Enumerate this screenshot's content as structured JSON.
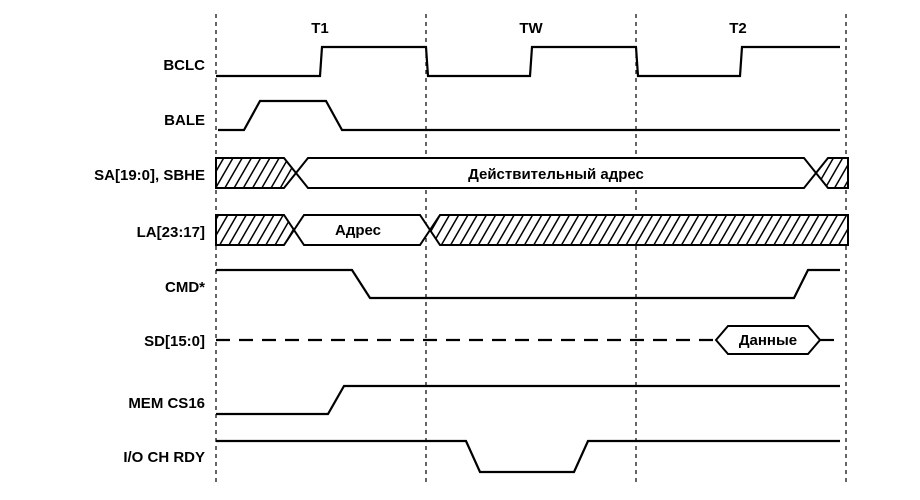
{
  "phases": [
    "T1",
    "TW",
    "T2"
  ],
  "signals": {
    "bclc": "BCLC",
    "bale": "BALE",
    "sa": "SA[19:0], SBHE",
    "la": "LA[23:17]",
    "cmd": "CMD*",
    "sd": "SD[15:0]",
    "memcs16": "MEM CS16",
    "iochrdy": "I/O CH RDY"
  },
  "bus_text": {
    "sa_valid": "Действительный адрес",
    "la_addr": "Адрес",
    "sd_data": "Данные"
  }
}
